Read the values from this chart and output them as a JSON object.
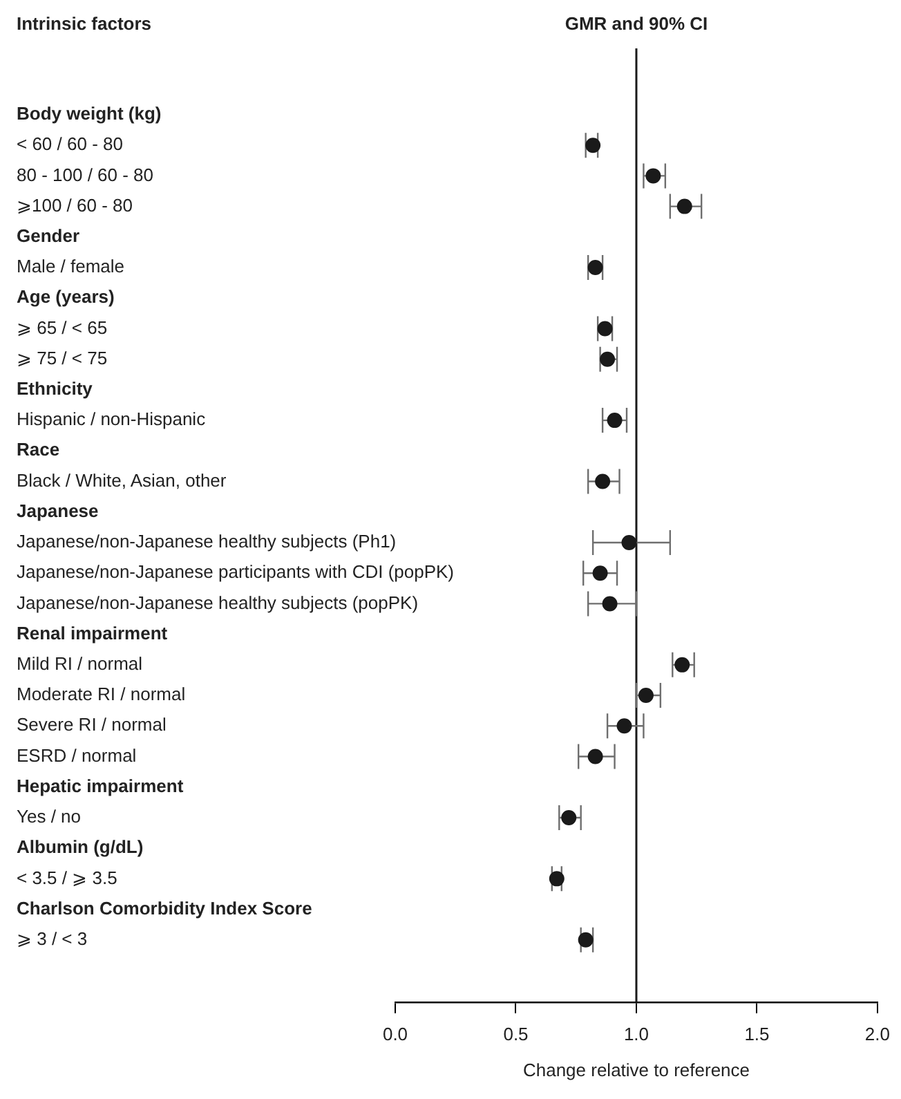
{
  "chart_data": {
    "type": "scatter",
    "orientation": "horizontal",
    "title": "GMR and 90% CI",
    "annotations": [
      "Intrinsic factors"
    ],
    "xlabel": "Change relative to reference",
    "categories": [
      "Body weight (kg)",
      "< 60 / 60 - 80",
      "80 - 100 / 60 - 80",
      "⩾100 / 60 - 80",
      "Gender",
      "Male / female",
      "Age (years)",
      "⩾ 65 / < 65",
      "⩾ 75 / < 75",
      "Ethnicity",
      "Hispanic / non-Hispanic",
      "Race",
      "Black / White, Asian, other",
      "Japanese",
      "Japanese/non-Japanese healthy subjects (Ph1)",
      "Japanese/non-Japanese participants with CDI (popPK)",
      "Japanese/non-Japanese healthy subjects (popPK)",
      "Renal impairment",
      "Mild RI / normal",
      "Moderate RI / normal",
      "Severe RI / normal",
      "ESRD / normal",
      "Hepatic impairment",
      "Yes / no",
      "Albumin (g/dL)",
      "< 3.5 / ⩾ 3.5",
      "Charlson Comorbidity Index Score",
      "⩾ 3 / < 3"
    ],
    "values": [
      null,
      0.82,
      1.07,
      1.2,
      null,
      0.83,
      null,
      0.87,
      0.88,
      null,
      0.91,
      null,
      0.86,
      null,
      0.97,
      0.85,
      0.89,
      null,
      1.19,
      1.04,
      0.95,
      0.83,
      null,
      0.72,
      null,
      0.67,
      null,
      0.79
    ],
    "errors": [
      null,
      [
        0.79,
        0.84
      ],
      [
        1.03,
        1.12
      ],
      [
        1.14,
        1.27
      ],
      null,
      [
        0.8,
        0.86
      ],
      null,
      [
        0.84,
        0.9
      ],
      [
        0.85,
        0.92
      ],
      null,
      [
        0.86,
        0.96
      ],
      null,
      [
        0.8,
        0.93
      ],
      null,
      [
        0.82,
        1.14
      ],
      [
        0.78,
        0.92
      ],
      [
        0.8,
        1.0
      ],
      null,
      [
        1.15,
        1.24
      ],
      [
        1.0,
        1.1
      ],
      [
        0.88,
        1.03
      ],
      [
        0.76,
        0.91
      ],
      null,
      [
        0.68,
        0.77
      ],
      null,
      [
        0.65,
        0.69
      ],
      null,
      [
        0.77,
        0.82
      ]
    ],
    "color": "#1a1a1a",
    "marker": "circle",
    "grid": false,
    "xlim": [
      0,
      2
    ],
    "xticks": [
      {
        "value": 0,
        "label": "0.0"
      },
      {
        "value": 0.5,
        "label": "0.5"
      },
      {
        "value": 1,
        "label": "1.0"
      },
      {
        "value": 1.5,
        "label": "1.5"
      },
      {
        "value": 2,
        "label": "2.0"
      }
    ],
    "ref_lines": [
      {
        "axis": "x",
        "value": 1,
        "color": "#1a1a1a"
      }
    ]
  }
}
